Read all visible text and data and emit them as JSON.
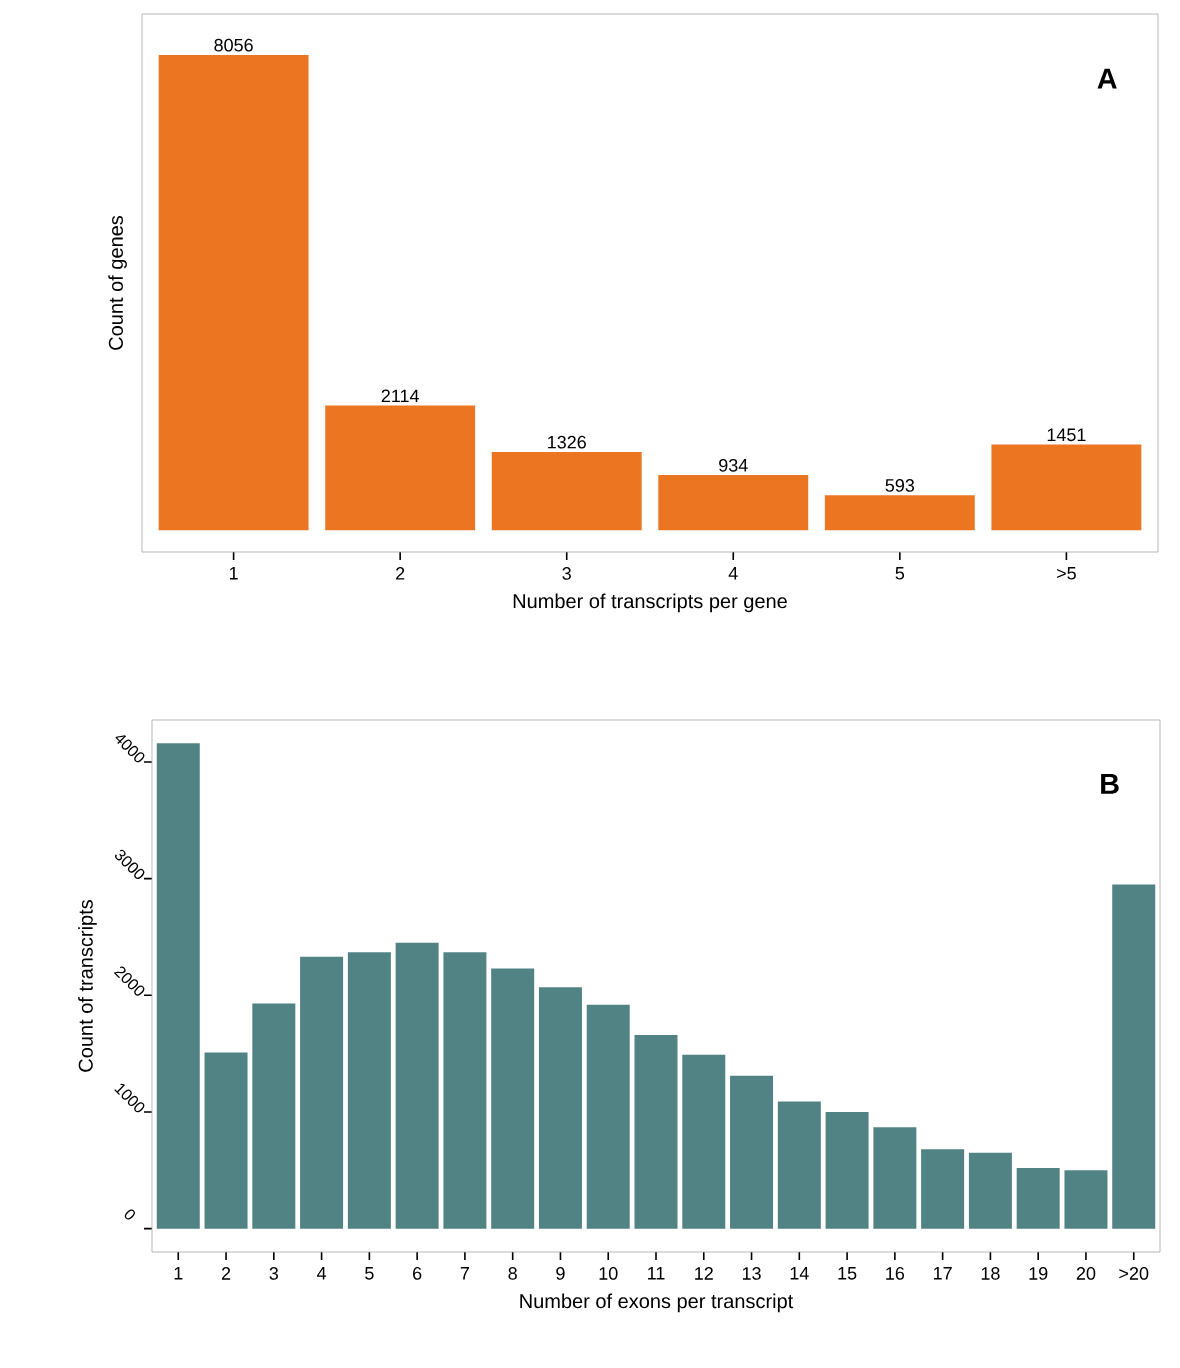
{
  "chart_data": [
    {
      "type": "bar",
      "xlabel": "Number of transcripts per gene",
      "ylabel": "Count of genes",
      "annotations": [
        "A"
      ],
      "categories": [
        "1",
        "2",
        "3",
        "4",
        "5",
        ">5"
      ],
      "values": [
        8056,
        2114,
        1326,
        934,
        593,
        1451
      ],
      "color": "#ec7522",
      "data_labels": true,
      "tick_labels": "x",
      "ylim": [
        -370,
        8750
      ]
    },
    {
      "type": "bar",
      "xlabel": "Number of exons per transcript",
      "ylabel": "Count of transcripts",
      "annotations": [
        "B"
      ],
      "categories": [
        "1",
        "2",
        "3",
        "4",
        "5",
        "6",
        "7",
        "8",
        "9",
        "10",
        "11",
        "12",
        "13",
        "14",
        "15",
        "16",
        "17",
        "18",
        "19",
        "20",
        ">20"
      ],
      "values": [
        4160,
        1510,
        1930,
        2330,
        2370,
        2450,
        2370,
        2230,
        2070,
        1920,
        1660,
        1490,
        1310,
        1090,
        1000,
        870,
        680,
        650,
        520,
        500,
        2950
      ],
      "color": "#518385",
      "ylim": [
        -200,
        4360
      ],
      "yticks": [
        0,
        1000,
        2000,
        3000,
        4000
      ]
    }
  ]
}
